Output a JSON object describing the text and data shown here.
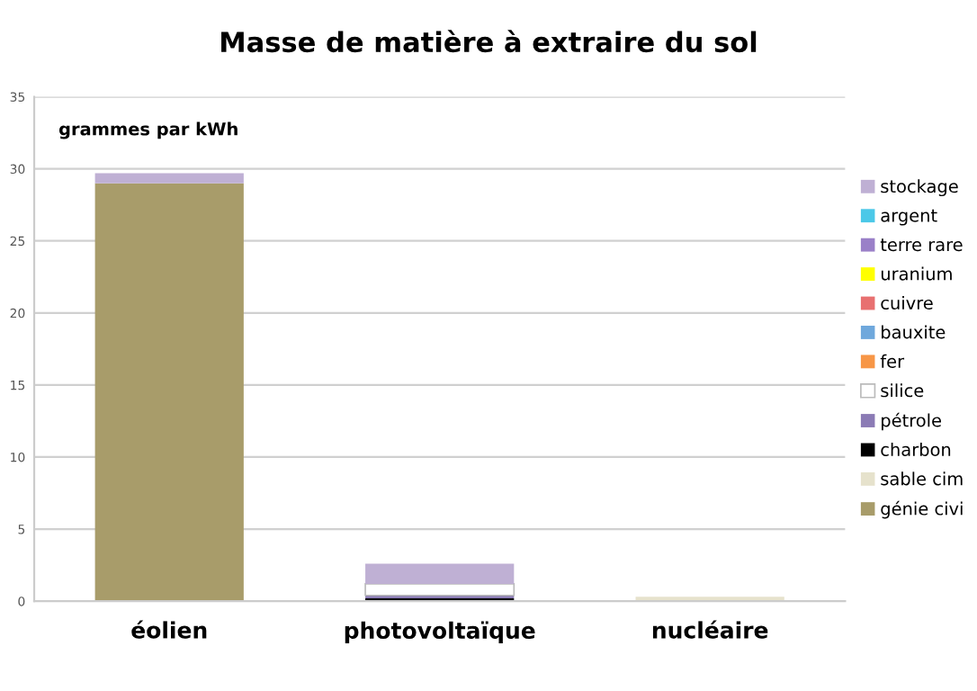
{
  "chart_data": {
    "type": "bar",
    "title": "Masse de matière à extraire du sol",
    "annotations": [
      "grammes par kWh"
    ],
    "categories": [
      "éolien",
      "photovoltaïque",
      "nucléaire"
    ],
    "stacked": true,
    "ylim": [
      0,
      35
    ],
    "yticks": [
      0,
      5,
      10,
      15,
      20,
      25,
      30,
      35
    ],
    "grid": "y",
    "legend": "right",
    "series": [
      {
        "name": "génie civi",
        "color": "#a89c6a",
        "values": [
          29.0,
          0,
          0
        ]
      },
      {
        "name": "sable cim",
        "color": "#e6e2cc",
        "values": [
          0,
          0,
          0.3
        ]
      },
      {
        "name": "charbon",
        "color": "#000000",
        "values": [
          0,
          0.2,
          0
        ]
      },
      {
        "name": "pétrole",
        "color": "#8b7bb5",
        "values": [
          0,
          0.2,
          0
        ]
      },
      {
        "name": "silice",
        "color": "#ffffff",
        "values": [
          0,
          0.8,
          0
        ]
      },
      {
        "name": "fer",
        "color": "#f79646",
        "values": [
          0,
          0,
          0
        ]
      },
      {
        "name": "bauxite",
        "color": "#6fa8dc",
        "values": [
          0,
          0,
          0
        ]
      },
      {
        "name": "cuivre",
        "color": "#e87070",
        "values": [
          0,
          0,
          0
        ]
      },
      {
        "name": "uranium",
        "color": "#ffff00",
        "values": [
          0,
          0,
          0
        ]
      },
      {
        "name": "terre rare",
        "color": "#9a80c8",
        "values": [
          0,
          0,
          0
        ]
      },
      {
        "name": "argent",
        "color": "#4bc8e8",
        "values": [
          0,
          0,
          0
        ]
      },
      {
        "name": "stockage",
        "color": "#bfb0d4",
        "values": [
          0.7,
          1.4,
          0
        ]
      }
    ]
  }
}
